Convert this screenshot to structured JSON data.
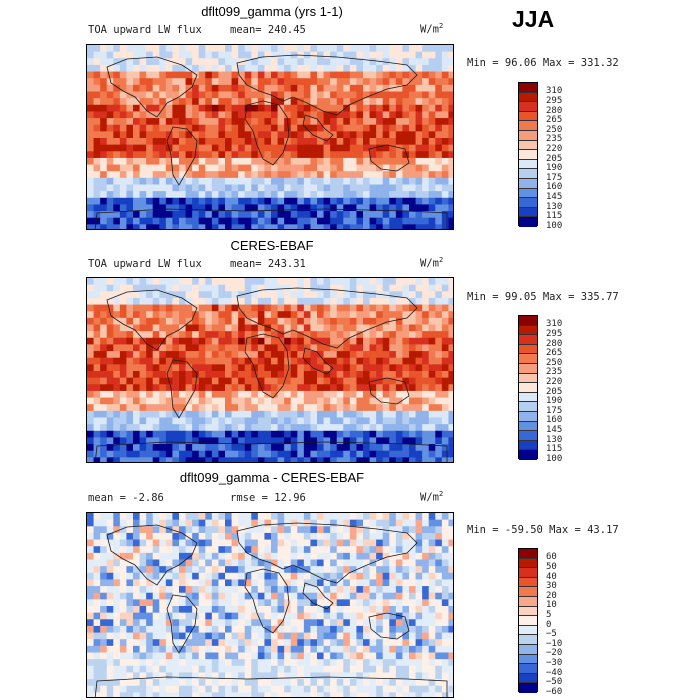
{
  "season": "JJA",
  "land_outline_color": "#1a1a1a",
  "panels": [
    {
      "title": "dflt099_gamma (yrs 1-1)",
      "variable": "TOA upward LW flux",
      "stat1": "mean= 240.45",
      "stat2": "",
      "units": "W/m",
      "units_exp": "2",
      "minmax": "Min =  96.06 Max = 331.32",
      "levels": [
        "310",
        "295",
        "280",
        "265",
        "250",
        "235",
        "220",
        "205",
        "190",
        "175",
        "160",
        "145",
        "130",
        "115",
        "100"
      ],
      "colors": [
        "#8b0000",
        "#b81a00",
        "#d7301f",
        "#e8552b",
        "#f07a4e",
        "#f59d7c",
        "#f9c5ad",
        "#fde6da",
        "#dbe8f7",
        "#b6cff0",
        "#8fb3ea",
        "#6290e2",
        "#3868d6",
        "#1741c2",
        "#00008b"
      ]
    },
    {
      "title": "CERES-EBAF",
      "variable": "TOA upward LW flux",
      "stat1": "mean= 243.31",
      "stat2": "",
      "units": "W/m",
      "units_exp": "2",
      "minmax": "Min =  99.05 Max = 335.77",
      "levels": [
        "310",
        "295",
        "280",
        "265",
        "250",
        "235",
        "220",
        "205",
        "190",
        "175",
        "160",
        "145",
        "130",
        "115",
        "100"
      ],
      "colors": [
        "#8b0000",
        "#b81a00",
        "#d7301f",
        "#e8552b",
        "#f07a4e",
        "#f59d7c",
        "#f9c5ad",
        "#fde6da",
        "#dbe8f7",
        "#b6cff0",
        "#8fb3ea",
        "#6290e2",
        "#3868d6",
        "#1741c2",
        "#00008b"
      ]
    },
    {
      "title": "dflt099_gamma - CERES-EBAF",
      "variable": "",
      "stat1": "mean =  -2.86",
      "stat2": "rmse =  12.96",
      "units": "W/m",
      "units_exp": "2",
      "minmax": "Min = -59.50 Max =  43.17",
      "levels": [
        "60",
        "50",
        "40",
        "30",
        "20",
        "10",
        "5",
        "0",
        "−5",
        "−10",
        "−20",
        "−30",
        "−40",
        "−50",
        "−60"
      ],
      "colors": [
        "#8b0000",
        "#b81a00",
        "#d7301f",
        "#e8552b",
        "#f07a4e",
        "#f9a78c",
        "#fcd3c0",
        "#fdf0e8",
        "#e3edf8",
        "#bcd3f0",
        "#8fb3ea",
        "#6290e2",
        "#3868d6",
        "#1741c2",
        "#00008b"
      ]
    }
  ]
}
